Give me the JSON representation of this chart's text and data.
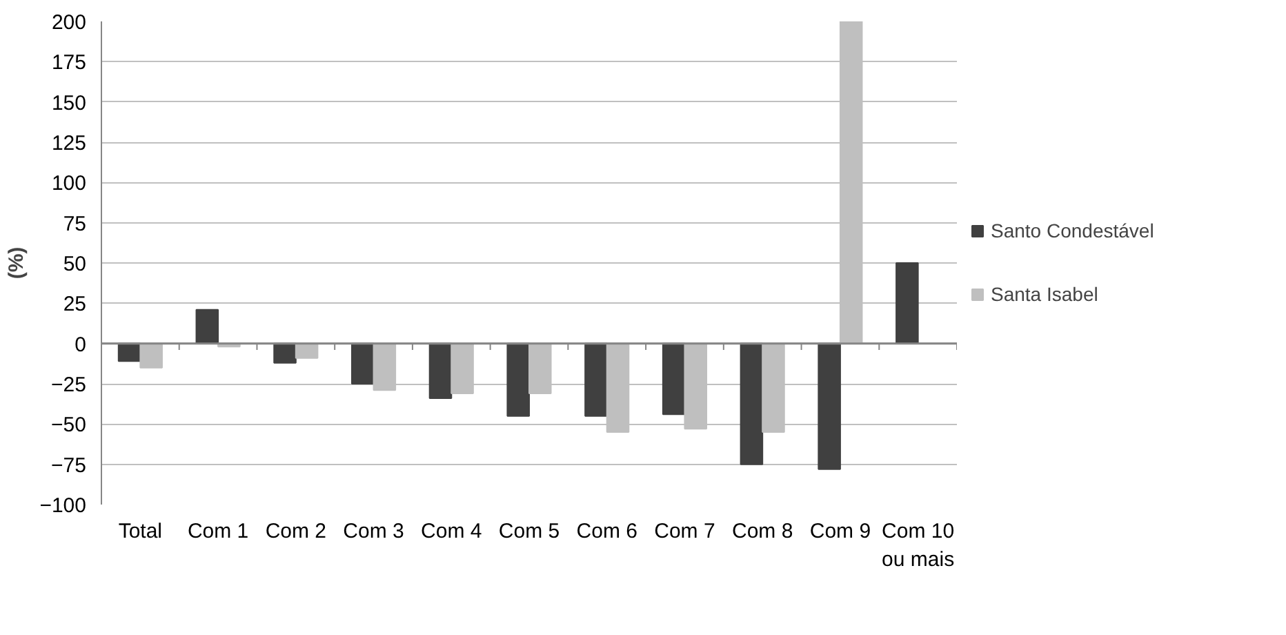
{
  "chart_data": {
    "type": "bar",
    "ylabel": "(%)",
    "categories": [
      "Total",
      "Com 1",
      "Com 2",
      "Com 3",
      "Com 4",
      "Com 5",
      "Com 6",
      "Com 7",
      "Com 8",
      "Com 9",
      "Com 10 ou mais"
    ],
    "series": [
      {
        "name": "Santo Condestável",
        "color": "#404040",
        "values": [
          -11,
          21,
          -12,
          -25,
          -34,
          -45,
          -45,
          -44,
          -75,
          -78,
          50
        ]
      },
      {
        "name": "Santa Isabel",
        "color": "#bfbfbf",
        "values": [
          -15,
          -2,
          -9,
          -29,
          -31,
          -31,
          -55,
          -53,
          -55,
          200,
          null
        ]
      }
    ],
    "ylim": [
      -100,
      200
    ],
    "yticks": [
      -100,
      -75,
      -50,
      -25,
      0,
      25,
      50,
      75,
      100,
      125,
      150,
      175,
      200
    ],
    "grid": "y",
    "legend": "right"
  }
}
